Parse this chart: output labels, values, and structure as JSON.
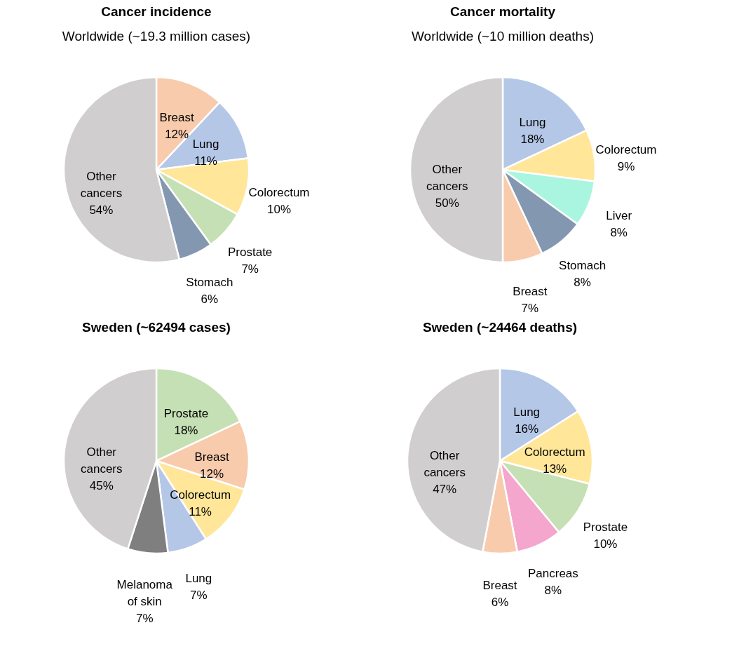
{
  "chart_data": [
    {
      "type": "pie",
      "title": "Cancer incidence",
      "subtitle": "Worldwide (~19.3 million cases)",
      "categories": [
        "Breast",
        "Lung",
        "Colorectum",
        "Prostate",
        "Stomach",
        "Other cancers"
      ],
      "values": [
        12,
        11,
        10,
        7,
        6,
        54
      ],
      "value_labels": [
        "12%",
        "11%",
        "10%",
        "7%",
        "6%",
        "54%"
      ],
      "colors": [
        "#f8cbad",
        "#b4c7e7",
        "#ffe699",
        "#c5e0b4",
        "#8497b0",
        "#d0cece"
      ],
      "legend": false
    },
    {
      "type": "pie",
      "title": "Cancer mortality",
      "subtitle": "Worldwide (~10 million deaths)",
      "categories": [
        "Lung",
        "Colorectum",
        "Liver",
        "Stomach",
        "Breast",
        "Other cancers"
      ],
      "values": [
        18,
        9,
        8,
        8,
        7,
        50
      ],
      "value_labels": [
        "18%",
        "9%",
        "8%",
        "8%",
        "7%",
        "50%"
      ],
      "colors": [
        "#b4c7e7",
        "#ffe699",
        "#a9f5e0",
        "#8497b0",
        "#f8cbad",
        "#d0cece"
      ],
      "legend": false
    },
    {
      "type": "pie",
      "title": "Sweden (~62494 cases)",
      "categories": [
        "Prostate",
        "Breast",
        "Colorectum",
        "Lung",
        "Melanoma of skin",
        "Other cancers"
      ],
      "values": [
        18,
        12,
        11,
        7,
        7,
        45
      ],
      "value_labels": [
        "18%",
        "12%",
        "11%",
        "7%",
        "7%",
        "45%"
      ],
      "colors": [
        "#c5e0b4",
        "#f8cbad",
        "#ffe699",
        "#b4c7e7",
        "#7f7f7f",
        "#d0cece"
      ],
      "legend": false
    },
    {
      "type": "pie",
      "title": "Sweden (~24464 deaths)",
      "categories": [
        "Lung",
        "Colorectum",
        "Prostate",
        "Pancreas",
        "Breast",
        "Other cancers"
      ],
      "values": [
        16,
        13,
        10,
        8,
        6,
        47
      ],
      "value_labels": [
        "16%",
        "13%",
        "10%",
        "8%",
        "6%",
        "47%"
      ],
      "colors": [
        "#b4c7e7",
        "#ffe699",
        "#c5e0b4",
        "#f4a6cc",
        "#f8cbad",
        "#d0cece"
      ],
      "legend": false
    }
  ]
}
